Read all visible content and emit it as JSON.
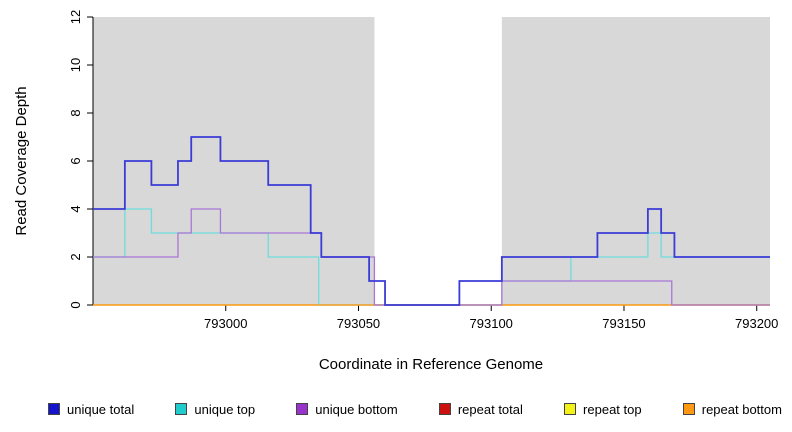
{
  "figure": {
    "background": "#ffffff"
  },
  "chart_data": {
    "type": "line",
    "step": true,
    "title": "",
    "xlabel": "Coordinate in Reference Genome",
    "ylabel": "Read Coverage Depth",
    "xlim": [
      792950,
      793205
    ],
    "ylim": [
      0,
      12
    ],
    "x_ticks": [
      793000,
      793050,
      793100,
      793150,
      793200
    ],
    "y_ticks": [
      0,
      2,
      4,
      6,
      8,
      10,
      12
    ],
    "grid": false,
    "legend_position": "bottom",
    "shaded_regions": [
      {
        "x0": 792950,
        "x1": 793056,
        "color": "#d8d8d8"
      },
      {
        "x0": 793104,
        "x1": 793205,
        "color": "#d8d8d8"
      }
    ],
    "series": [
      {
        "name": "unique total",
        "color": "#3b3bd6",
        "legend_color": "#1414cc",
        "points": [
          [
            792950,
            4
          ],
          [
            792962,
            6
          ],
          [
            792972,
            5
          ],
          [
            792982,
            6
          ],
          [
            792987,
            7
          ],
          [
            792998,
            6
          ],
          [
            793016,
            5
          ],
          [
            793032,
            3
          ],
          [
            793036,
            2
          ],
          [
            793054,
            1
          ],
          [
            793060,
            0
          ],
          [
            793088,
            1
          ],
          [
            793104,
            2
          ],
          [
            793140,
            3
          ],
          [
            793159,
            4
          ],
          [
            793164,
            3
          ],
          [
            793169,
            2
          ],
          [
            793205,
            2
          ]
        ]
      },
      {
        "name": "unique top",
        "color": "#6fdcdc",
        "legend_color": "#20cccc",
        "points": [
          [
            792950,
            2
          ],
          [
            792962,
            4
          ],
          [
            792972,
            3
          ],
          [
            793016,
            2
          ],
          [
            793035,
            0
          ],
          [
            793104,
            1
          ],
          [
            793130,
            2
          ],
          [
            793159,
            3
          ],
          [
            793164,
            2
          ],
          [
            793205,
            2
          ]
        ]
      },
      {
        "name": "unique bottom",
        "color": "#a876d6",
        "legend_color": "#9933cc",
        "points": [
          [
            792950,
            2
          ],
          [
            792982,
            3
          ],
          [
            792987,
            4
          ],
          [
            792998,
            3
          ],
          [
            793036,
            2
          ],
          [
            793056,
            0
          ],
          [
            793104,
            1
          ],
          [
            793168,
            0
          ],
          [
            793205,
            0
          ]
        ]
      },
      {
        "name": "repeat total",
        "color": "#cc1111",
        "legend_color": "#cc1111",
        "points": [
          [
            792950,
            0
          ],
          [
            793205,
            0
          ]
        ]
      },
      {
        "name": "repeat top",
        "color": "#f2f218",
        "legend_color": "#f2f218",
        "points": [
          [
            792950,
            0
          ],
          [
            793205,
            0
          ]
        ]
      },
      {
        "name": "repeat bottom",
        "color": "#ffa01e",
        "legend_color": "#ff9914",
        "points": [
          [
            792950,
            0
          ],
          [
            793205,
            0
          ]
        ]
      }
    ],
    "draw_order": [
      3,
      4,
      1,
      5,
      2,
      0
    ]
  }
}
